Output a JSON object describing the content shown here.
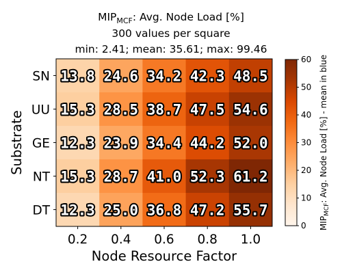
{
  "chart_data": {
    "type": "heatmap",
    "title": {
      "line1_main": "MIP",
      "line1_sub": "MCF",
      "line1_rest": ": Avg. Node Load [%]",
      "line2": "300 values per square",
      "line3": "min: 2.41; mean: 35.61; max: 99.46"
    },
    "xlabel": "Node Resource Factor",
    "ylabel": "Substrate",
    "x_categories": [
      "0.2",
      "0.4",
      "0.6",
      "0.8",
      "1.0"
    ],
    "y_categories": [
      "SN",
      "UU",
      "GE",
      "NT",
      "DT"
    ],
    "values": [
      [
        13.8,
        24.6,
        34.2,
        42.3,
        48.5
      ],
      [
        15.3,
        28.5,
        38.7,
        47.5,
        54.6
      ],
      [
        12.3,
        23.9,
        34.4,
        44.2,
        52.0
      ],
      [
        15.3,
        28.7,
        41.0,
        52.3,
        61.2
      ],
      [
        12.3,
        25.0,
        36.8,
        47.2,
        55.7
      ]
    ],
    "value_labels": [
      [
        "13.8",
        "24.6",
        "34.2",
        "42.3",
        "48.5"
      ],
      [
        "15.3",
        "28.5",
        "38.7",
        "47.5",
        "54.6"
      ],
      [
        "12.3",
        "23.9",
        "34.4",
        "44.2",
        "52.0"
      ],
      [
        "15.3",
        "28.7",
        "41.0",
        "52.3",
        "61.2"
      ],
      [
        "12.3",
        "25.0",
        "36.8",
        "47.2",
        "55.7"
      ]
    ],
    "colorbar": {
      "range": [
        0,
        60
      ],
      "ticks": [
        "0",
        "10",
        "20",
        "30",
        "40",
        "50",
        "60"
      ],
      "label_main": "MIP",
      "label_sub": "MCF",
      "label_rest": ": Avg. Node Load [%] - mean in blue",
      "colormap": "Oranges",
      "stops": [
        "#fff5eb",
        "#fee6ce",
        "#fdd0a2",
        "#fdae6b",
        "#fd8d3c",
        "#f16913",
        "#d94801",
        "#a63603",
        "#7f2704"
      ]
    }
  }
}
